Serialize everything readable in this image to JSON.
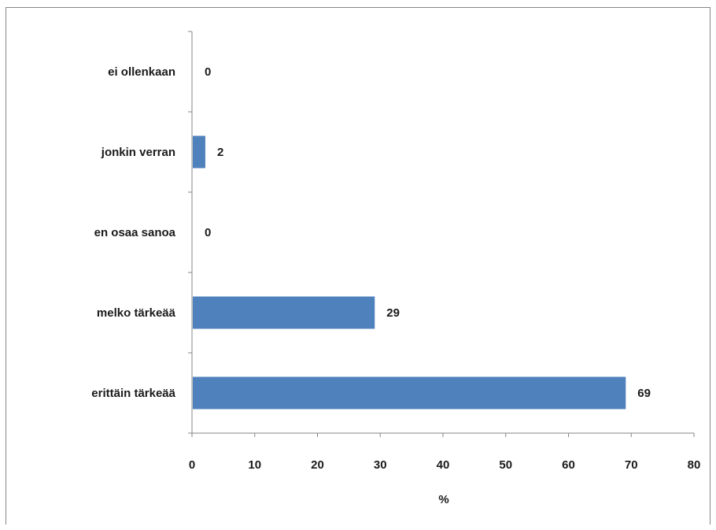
{
  "chart_data": {
    "type": "bar",
    "orientation": "horizontal",
    "title": "",
    "xlabel": "%",
    "ylabel": "",
    "categories": [
      "ei ollenkaan",
      "jonkin verran",
      "en osaa sanoa",
      "melko tärkeää",
      "erittäin tärkeää"
    ],
    "values": [
      0,
      2,
      0,
      29,
      69
    ],
    "data_labels": [
      "0",
      "2",
      "0",
      "29",
      "69"
    ],
    "xlim": [
      0,
      80
    ],
    "x_ticks": [
      "0",
      "10",
      "20",
      "30",
      "40",
      "50",
      "60",
      "70",
      "80"
    ],
    "grid": false,
    "legend": "none",
    "bar_color": "#4f81bd"
  }
}
